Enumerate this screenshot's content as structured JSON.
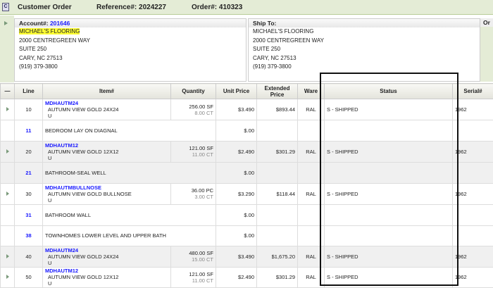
{
  "header": {
    "title": "Customer Order",
    "reference": "Reference#: 2024227",
    "order": "Order#: 410323"
  },
  "account": {
    "label": "Account#:",
    "number": "201646",
    "lines": [
      "MICHAEL'S FLOORING",
      "2000 CENTREGREEN WAY",
      "SUITE 250",
      "CARY, NC 27513",
      "(919) 379-3800"
    ]
  },
  "ship_to": {
    "label": "Ship To:",
    "lines": [
      "MICHAEL'S FLOORING",
      "2000 CENTREGREEN WAY",
      "SUITE 250",
      "CARY, NC 27513",
      "(919) 379-3800"
    ]
  },
  "or_label": "Or",
  "table": {
    "columns": [
      "—",
      "Line",
      "Item#",
      "Quantity",
      "Unit Price",
      "Extended Price",
      "Ware",
      "Status",
      "Serial#"
    ],
    "rows": [
      {
        "line": "10",
        "code": "MDHAUTM24",
        "desc": "AUTUMN VIEW GOLD 24X24",
        "uom": "U",
        "qty": "256.00 SF",
        "qty2": "8.00 CT",
        "unit": "$3.490",
        "ext": "$893.44",
        "ware": "RAL",
        "status": "S - SHIPPED",
        "serial": "1962"
      },
      {
        "line": "11",
        "note": "BEDROOM LAY ON DIAGNAL",
        "unit": "$.00"
      },
      {
        "line": "20",
        "code": "MDHAUTM12",
        "desc": "AUTUMN VIEW GOLD 12X12",
        "uom": "U",
        "qty": "121.00 SF",
        "qty2": "11.00 CT",
        "unit": "$2.490",
        "ext": "$301.29",
        "ware": "RAL",
        "status": "S - SHIPPED",
        "serial": "1962"
      },
      {
        "line": "21",
        "note": "BATHROOM-SEAL WELL",
        "unit": "$.00"
      },
      {
        "line": "30",
        "code": "MDHAUTMBULLNOSE",
        "desc": "AUTUMN VIEW GOLD BULLNOSE",
        "uom": "U",
        "qty": "36.00 PC",
        "qty2": "3.00 CT",
        "unit": "$3.290",
        "ext": "$118.44",
        "ware": "RAL",
        "status": "S - SHIPPED",
        "serial": "1962"
      },
      {
        "line": "31",
        "note": "BATHROOM WALL",
        "unit": "$.00"
      },
      {
        "line": "38",
        "note": "TOWNHOMES LOWER LEVEL AND UPPER BATH",
        "unit": "$.00"
      },
      {
        "line": "40",
        "code": "MDHAUTM24",
        "desc": "AUTUMN VIEW GOLD 24X24",
        "uom": "U",
        "qty": "480.00 SF",
        "qty2": "15.00 CT",
        "unit": "$3.490",
        "ext": "$1,675.20",
        "ware": "RAL",
        "status": "S - SHIPPED",
        "serial": "1962"
      },
      {
        "line": "50",
        "code": "MDHAUTM12",
        "desc": "AUTUMN VIEW GOLD 12X12",
        "uom": "U",
        "qty": "121.00 SF",
        "qty2": "11.00 CT",
        "unit": "$2.490",
        "ext": "$301.29",
        "ware": "RAL",
        "status": "S - SHIPPED",
        "serial": "1962"
      }
    ]
  }
}
